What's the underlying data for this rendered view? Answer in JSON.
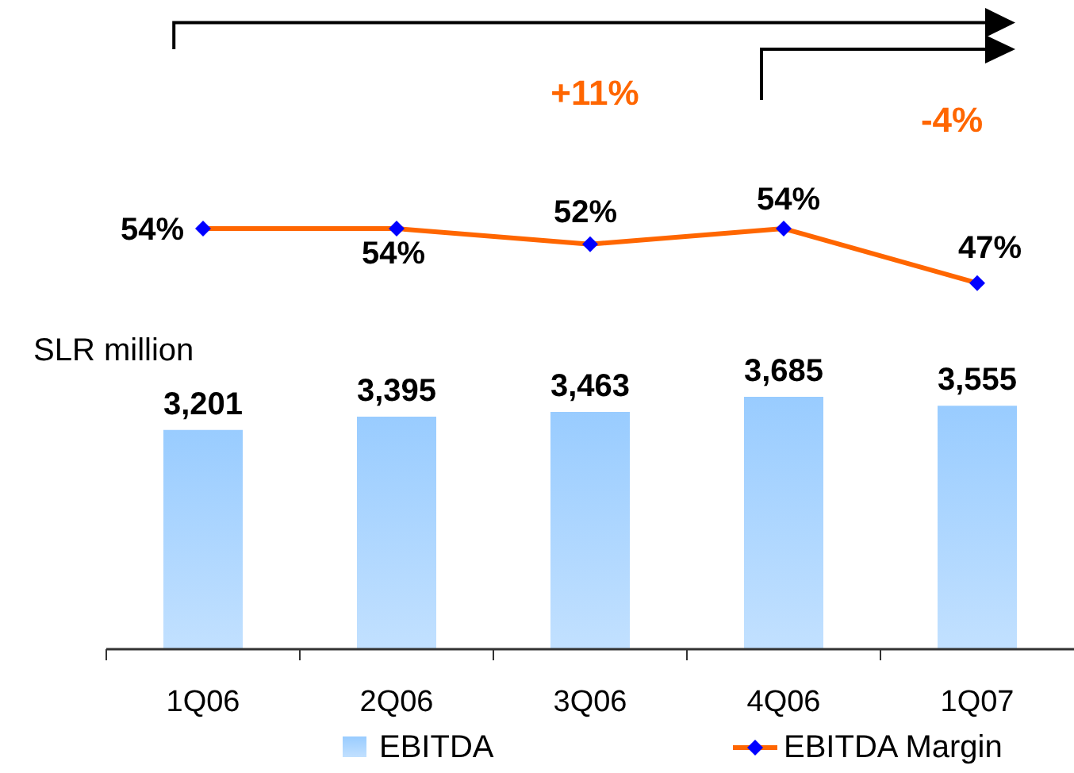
{
  "chart_data": [
    {
      "type": "bar",
      "ylabel": "SLR million",
      "categories": [
        "1Q06",
        "2Q06",
        "3Q06",
        "4Q06",
        "1Q07"
      ],
      "series": [
        {
          "name": "EBITDA",
          "color": "#99ccff",
          "values": [
            3201,
            3395,
            3463,
            3685,
            3555
          ],
          "value_labels": [
            "3,201",
            "3,395",
            "3,463",
            "3,685",
            "3,555"
          ]
        }
      ],
      "annotations": [
        "+11%",
        "-4%"
      ],
      "legend": "bottom",
      "tick_labels": "x"
    },
    {
      "type": "line",
      "categories": [
        null,
        null,
        null,
        null,
        null
      ],
      "series": [
        {
          "name": "EBITDA Margin",
          "color": "#ff6600",
          "colors": [
            "#0000ff",
            "#0000ff",
            "#0000ff",
            "#0000ff",
            "#0000ff"
          ],
          "marker": "diamond",
          "values": [
            54,
            54,
            52,
            54,
            47
          ],
          "value_labels": [
            "54%",
            "54%",
            "52%",
            "54%",
            "47%"
          ]
        }
      ],
      "legend": "bottom",
      "tick_labels": false
    }
  ]
}
